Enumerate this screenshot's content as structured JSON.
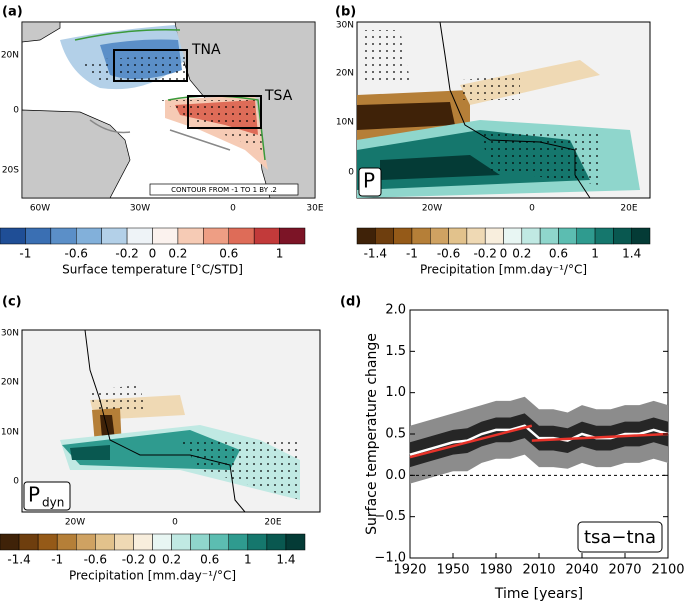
{
  "panels": [
    {
      "label": "(a)",
      "yticks": [
        "20N",
        "0",
        "20S"
      ],
      "xticks": [
        "60W",
        "30W",
        "0",
        "30E"
      ],
      "boxes": [
        "TNA",
        "TSA"
      ],
      "note": "CONTOUR FROM -1 TO 1 BY .2"
    },
    {
      "label": "(b)",
      "yticks": [
        "30N",
        "20N",
        "10N",
        "0"
      ],
      "xticks": [
        "20W",
        "0",
        "20E"
      ],
      "tag": "P"
    },
    {
      "label": "(c)",
      "yticks": [
        "30N",
        "20N",
        "10N",
        "0"
      ],
      "xticks": [
        "20W",
        "0",
        "20E"
      ],
      "tag": "P",
      "tag_sub": "dyn"
    }
  ],
  "colorbars": [
    {
      "label": "Surface temperature [°C/STD]",
      "levels": [
        -1.2,
        -1,
        -0.8,
        -0.6,
        -0.4,
        -0.2,
        0,
        0.2,
        0.4,
        0.6,
        0.8,
        1,
        1.2
      ],
      "colors": [
        "#1f4e96",
        "#3a6fb3",
        "#5b8fc8",
        "#82b0da",
        "#b3d0e8",
        "#eef3f7",
        "#fbf2ee",
        "#f6cbb5",
        "#ee9e84",
        "#de6c58",
        "#c23a3a",
        "#7c1426"
      ],
      "ticks": [
        -1,
        -0.6,
        -0.2,
        0,
        0.2,
        0.6,
        1
      ]
    },
    {
      "label": "Precipitation [mm.day⁻¹/°C]",
      "levels": [
        -1.6,
        -1.4,
        -1.2,
        -1,
        -0.8,
        -0.6,
        -0.4,
        -0.2,
        0,
        0.2,
        0.4,
        0.6,
        0.8,
        1,
        1.2,
        1.4,
        1.6
      ],
      "colors": [
        "#3f2208",
        "#6e3e0e",
        "#955a18",
        "#b57f38",
        "#cfa262",
        "#e2c28c",
        "#efd9b4",
        "#f8eedd",
        "#e8f6f3",
        "#c0e9e3",
        "#8fd6cc",
        "#5cbdb1",
        "#2f9b8f",
        "#15776d",
        "#095850",
        "#043b36"
      ],
      "ticks": [
        -1.4,
        -1,
        -0.6,
        -0.2,
        0,
        0.2,
        0.6,
        1,
        1.4
      ]
    },
    {
      "label": "Precipitation [mm.day⁻¹/°C]",
      "levels": [
        -1.6,
        -1.4,
        -1.2,
        -1,
        -0.8,
        -0.6,
        -0.4,
        -0.2,
        0,
        0.2,
        0.4,
        0.6,
        0.8,
        1,
        1.2,
        1.4,
        1.6
      ],
      "colors": [
        "#3f2208",
        "#6e3e0e",
        "#955a18",
        "#b57f38",
        "#cfa262",
        "#e2c28c",
        "#efd9b4",
        "#f8eedd",
        "#e8f6f3",
        "#c0e9e3",
        "#8fd6cc",
        "#5cbdb1",
        "#2f9b8f",
        "#15776d",
        "#095850",
        "#043b36"
      ],
      "ticks": [
        -1.4,
        -1,
        -0.6,
        -0.2,
        0,
        0.2,
        0.6,
        1,
        1.4
      ]
    }
  ],
  "chart_data": {
    "type": "line",
    "label": "(d)",
    "xlabel": "Time [years]",
    "ylabel": "Surface temperature change",
    "annotation": "tsa−tna",
    "x": [
      1920,
      1930,
      1940,
      1950,
      1960,
      1970,
      1980,
      1990,
      2000,
      2010,
      2020,
      2030,
      2040,
      2050,
      2060,
      2070,
      2080,
      2090,
      2100
    ],
    "bands": [
      {
        "color": "#8c8c8c",
        "lower": [
          -0.1,
          -0.05,
          0.0,
          0.05,
          0.05,
          0.15,
          0.2,
          0.2,
          0.25,
          0.1,
          0.1,
          0.08,
          0.15,
          0.1,
          0.1,
          0.15,
          0.15,
          0.2,
          0.15
        ],
        "upper": [
          0.6,
          0.65,
          0.7,
          0.75,
          0.8,
          0.85,
          0.9,
          0.9,
          0.95,
          0.8,
          0.8,
          0.76,
          0.85,
          0.8,
          0.8,
          0.85,
          0.85,
          0.9,
          0.85
        ]
      },
      {
        "color": "#262626",
        "lower": [
          0.1,
          0.15,
          0.2,
          0.25,
          0.27,
          0.35,
          0.4,
          0.4,
          0.45,
          0.3,
          0.3,
          0.27,
          0.35,
          0.3,
          0.3,
          0.35,
          0.35,
          0.4,
          0.35
        ],
        "upper": [
          0.4,
          0.45,
          0.5,
          0.55,
          0.57,
          0.65,
          0.7,
          0.7,
          0.75,
          0.6,
          0.6,
          0.57,
          0.65,
          0.6,
          0.6,
          0.65,
          0.65,
          0.7,
          0.65
        ]
      }
    ],
    "series": [
      {
        "color": "#ffffff",
        "values": [
          0.25,
          0.3,
          0.35,
          0.4,
          0.42,
          0.5,
          0.55,
          0.55,
          0.6,
          0.45,
          0.45,
          0.42,
          0.5,
          0.45,
          0.45,
          0.5,
          0.5,
          0.55,
          0.5
        ]
      },
      {
        "color": "#e8332a",
        "x": [
          1920,
          2005
        ],
        "values": [
          0.22,
          0.6
        ]
      },
      {
        "color": "#e8332a",
        "x": [
          2005,
          2100
        ],
        "values": [
          0.42,
          0.5
        ]
      }
    ],
    "reference_line": 0,
    "xlim": [
      1920,
      2100
    ],
    "xticks": [
      1920,
      1950,
      1980,
      2010,
      2040,
      2070,
      2100
    ],
    "ylim": [
      -1,
      2
    ],
    "yticks": [
      {
        "value": -1,
        "label": "−1.0"
      },
      {
        "value": -0.5,
        "label": "−0.5"
      },
      {
        "value": 0,
        "label": "0.0"
      },
      {
        "value": 0.5,
        "label": "0.5"
      },
      {
        "value": 1,
        "label": "1.0"
      },
      {
        "value": 1.5,
        "label": "1.5"
      },
      {
        "value": 2,
        "label": "2.0"
      }
    ]
  }
}
